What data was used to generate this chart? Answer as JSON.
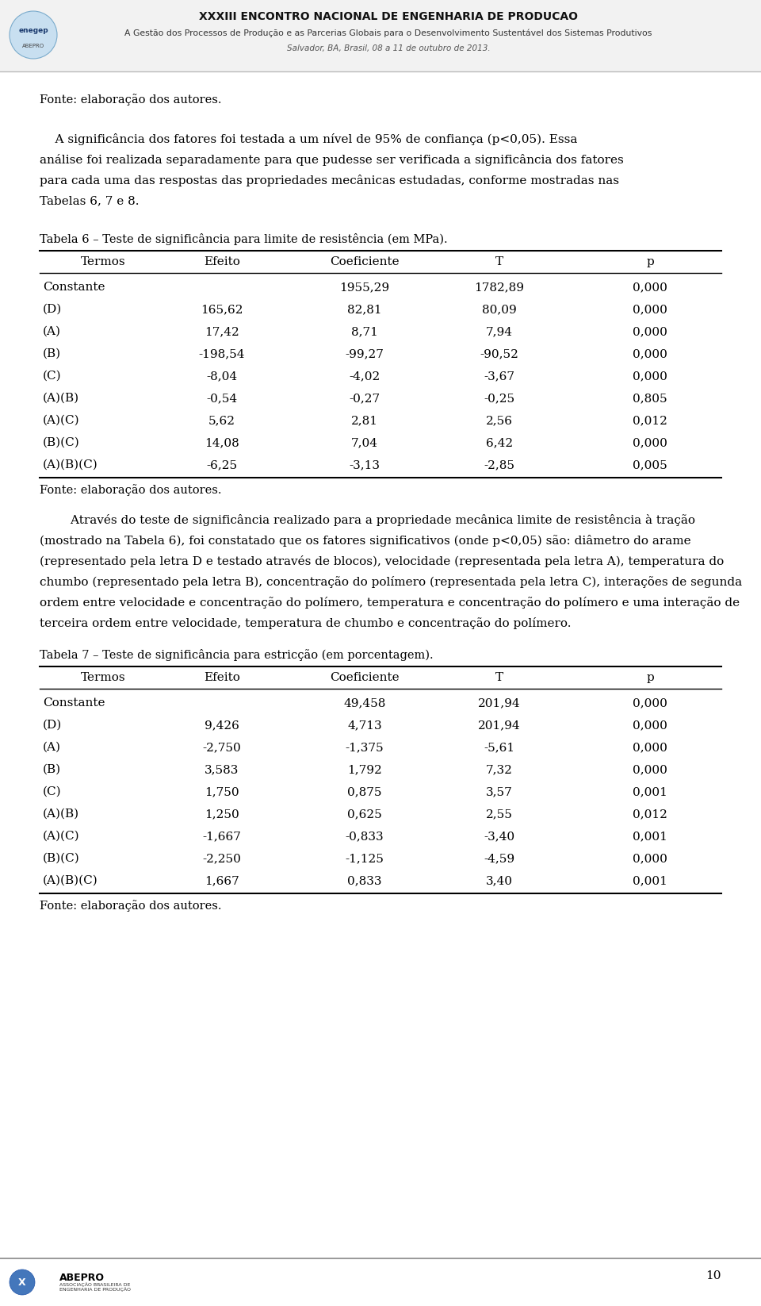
{
  "header_title": "XXXIII ENCONTRO NACIONAL DE ENGENHARIA DE PRODUCAO",
  "header_subtitle": "A Gestão dos Processos de Produção e as Parcerias Globais para o Desenvolvimento Sustentável dos Sistemas Produtivos",
  "header_date": "Salvador, BA, Brasil, 08 a 11 de outubro de 2013.",
  "fonte_top": "Fonte: elaboração dos autores.",
  "tabela6_title": "Tabela 6 – Teste de significância para limite de resistência (em MPa).",
  "tabela6_headers": [
    "Termos",
    "Efeito",
    "Coeficiente",
    "T",
    "p"
  ],
  "tabela6_rows": [
    [
      "Constante",
      "",
      "1955,29",
      "1782,89",
      "0,000"
    ],
    [
      "(D)",
      "165,62",
      "82,81",
      "80,09",
      "0,000"
    ],
    [
      "(A)",
      "17,42",
      "8,71",
      "7,94",
      "0,000"
    ],
    [
      "(B)",
      "-198,54",
      "-99,27",
      "-90,52",
      "0,000"
    ],
    [
      "(C)",
      "-8,04",
      "-4,02",
      "-3,67",
      "0,000"
    ],
    [
      "(A)(B)",
      "-0,54",
      "-0,27",
      "-0,25",
      "0,805"
    ],
    [
      "(A)(C)",
      "5,62",
      "2,81",
      "2,56",
      "0,012"
    ],
    [
      "(B)(C)",
      "14,08",
      "7,04",
      "6,42",
      "0,000"
    ],
    [
      "(A)(B)(C)",
      "-6,25",
      "-3,13",
      "-2,85",
      "0,005"
    ]
  ],
  "fonte6": "Fonte: elaboração dos autores.",
  "para2_lines": [
    "        Através do teste de significância realizado para a propriedade mecânica limite de resistência à tração",
    "(mostrado na Tabela 6), foi constatado que os fatores significativos (onde p<0,05) são: diâmetro do arame",
    "(representado pela letra D e testado através de blocos), velocidade (representada pela letra A), temperatura do",
    "chumbo (representado pela letra B), concentração do polímero (representada pela letra C), interações de segunda",
    "ordem entre velocidade e concentração do polímero, temperatura e concentração do polímero e uma interação de",
    "terceira ordem entre velocidade, temperatura de chumbo e concentração do polímero."
  ],
  "tabela7_title": "Tabela 7 – Teste de significância para estricção (em porcentagem).",
  "tabela7_headers": [
    "Termos",
    "Efeito",
    "Coeficiente",
    "T",
    "p"
  ],
  "tabela7_rows": [
    [
      "Constante",
      "",
      "49,458",
      "201,94",
      "0,000"
    ],
    [
      "(D)",
      "9,426",
      "4,713",
      "201,94",
      "0,000"
    ],
    [
      "(A)",
      "-2,750",
      "-1,375",
      "-5,61",
      "0,000"
    ],
    [
      "(B)",
      "3,583",
      "1,792",
      "7,32",
      "0,000"
    ],
    [
      "(C)",
      "1,750",
      "0,875",
      "3,57",
      "0,001"
    ],
    [
      "(A)(B)",
      "1,250",
      "0,625",
      "2,55",
      "0,012"
    ],
    [
      "(A)(C)",
      "-1,667",
      "-0,833",
      "-3,40",
      "0,001"
    ],
    [
      "(B)(C)",
      "-2,250",
      "-1,125",
      "-4,59",
      "0,000"
    ],
    [
      "(A)(B)(C)",
      "1,667",
      "0,833",
      "3,40",
      "0,001"
    ]
  ],
  "fonte7": "Fonte: elaboração dos autores.",
  "page_number": "10",
  "para1_line1": "    A significância dos fatores foi testada a um nível de 95% de confiança (p<0,05). Essa",
  "para1_line2": "análise foi realizada separadamente para que pudesse ser verificada a significância dos fatores",
  "para1_line3": "para cada uma das respostas das propriedades mecânicas estudadas, conforme mostradas nas",
  "para1_line4": "Tabelas 6, 7 e 8."
}
